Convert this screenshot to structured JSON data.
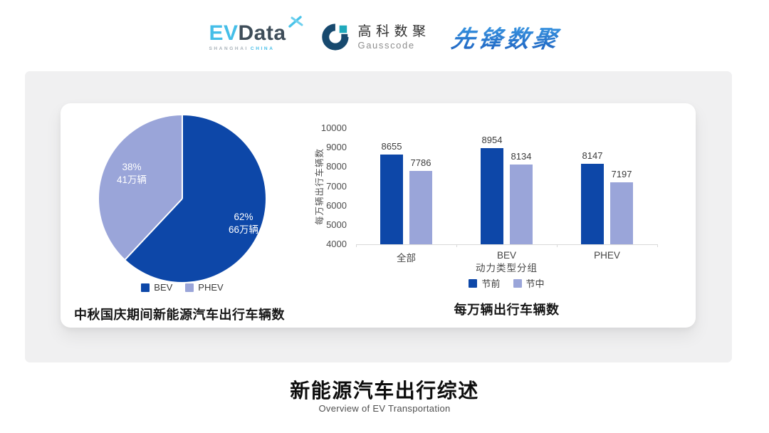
{
  "header": {
    "evdata": {
      "ev": "EV",
      "data": "Data",
      "sub1": "SHANGHAI",
      "sub2": "CHINA"
    },
    "gausscode": {
      "cn": "高科数聚",
      "en": "Gausscode"
    },
    "pioneer": {
      "text": "先锋数聚"
    }
  },
  "colors": {
    "accent_dark_blue": "#0D47A8",
    "accent_light_blue": "#9AA5D9",
    "panel_bg": "#F0F0F1",
    "evdata_cyan": "#45BEE8",
    "evdata_slate": "#3E4D59",
    "gauss_navy": "#17496E",
    "gauss_teal": "#1FA9BC",
    "pioneer_blue": "#2670C8"
  },
  "chart_data": [
    {
      "type": "pie",
      "title": "中秋国庆期间新能源汽车出行车辆数",
      "start_angle_deg": 0,
      "legend_position": "bottom",
      "slices": [
        {
          "label": "BEV",
          "percent": 62,
          "percent_label": "62%",
          "value_label": "66万辆",
          "color": "#0D47A8"
        },
        {
          "label": "PHEV",
          "percent": 38,
          "percent_label": "38%",
          "value_label": "41万辆",
          "color": "#9AA5D9"
        }
      ]
    },
    {
      "type": "bar",
      "title": "每万辆出行车辆数",
      "categories": [
        "全部",
        "BEV",
        "PHEV"
      ],
      "series": [
        {
          "name": "节前",
          "color": "#0D47A8",
          "values": [
            8655,
            8954,
            8147
          ]
        },
        {
          "name": "节中",
          "color": "#9AA5D9",
          "values": [
            7786,
            8134,
            7197
          ]
        }
      ],
      "xlabel": "动力类型分组",
      "ylabel": "每万辆出行车辆数",
      "ylim": [
        4000,
        10000
      ],
      "ytick_step": 1000,
      "grid": false,
      "legend_position": "bottom"
    }
  ],
  "footer": {
    "title": "新能源汽车出行综述",
    "subtitle": "Overview of EV Transportation"
  }
}
